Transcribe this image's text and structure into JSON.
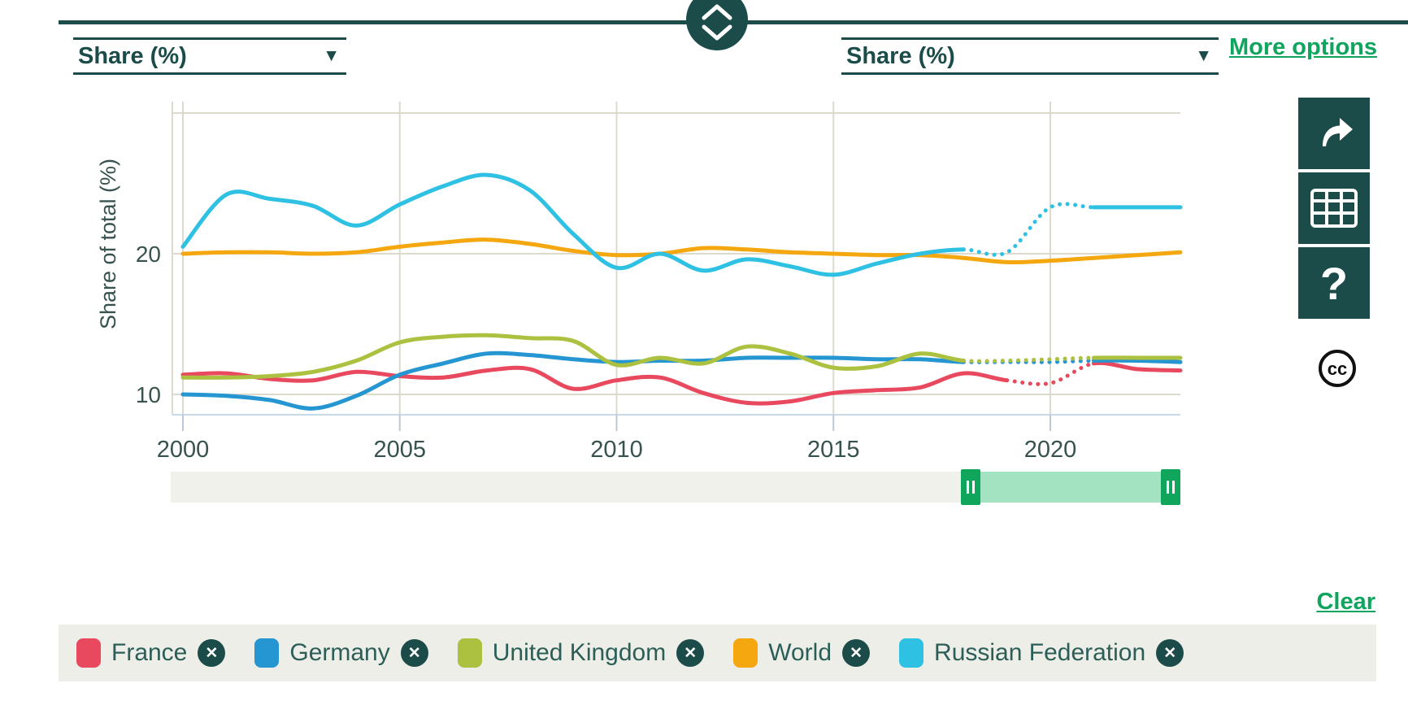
{
  "collapse_control": {
    "icon": "chevrons-up-down"
  },
  "left_axis_dropdown": {
    "value": "Share (%)",
    "caret_icon": "caret-down"
  },
  "right_axis_dropdown": {
    "value": "Share (%)",
    "caret_icon": "caret-down"
  },
  "more_options_label": "More options",
  "clear_label": "Clear",
  "toolbar": {
    "buttons": [
      {
        "name": "share",
        "icon": "share-arrow-icon"
      },
      {
        "name": "table",
        "icon": "data-table-icon"
      },
      {
        "name": "help",
        "icon": "question-mark-icon",
        "glyph": "?"
      }
    ],
    "license_icon": "creative-commons-icon",
    "license_text": "cc"
  },
  "colors": {
    "brand_teal": "#1c4c49",
    "link_green": "#10a55e",
    "slider_selection": "#a3e3c2",
    "slider_handle": "#0fa65c",
    "slider_track": "#f0f1eb",
    "legend_bg": "#edeee7",
    "gridline": "#ded9cd",
    "baseline": "#c7d8e9",
    "tick": "#b9c9d9",
    "axis_text": "#38534f"
  },
  "chart_data": {
    "type": "line",
    "title": "",
    "xlabel": "",
    "ylabel": "Share of total (%)",
    "x_range": [
      2000,
      2023
    ],
    "ylim": [
      8.5,
      30.8
    ],
    "x_ticks": [
      2000,
      2005,
      2010,
      2015,
      2020
    ],
    "y_ticks_labeled": [
      10,
      20
    ],
    "y_gridlines": [
      10,
      20,
      30
    ],
    "grid": true,
    "legend_position": "bottom-bar",
    "dotted_segment_meaning": "estimated values",
    "x": [
      2000,
      2001,
      2002,
      2003,
      2004,
      2005,
      2006,
      2007,
      2008,
      2009,
      2010,
      2011,
      2012,
      2013,
      2014,
      2015,
      2016,
      2017,
      2018,
      2019,
      2020,
      2021,
      2022,
      2023
    ],
    "series": [
      {
        "name": "France",
        "color": "#e8495f",
        "dotted_range": [
          2019,
          2021
        ],
        "values": [
          11.4,
          11.5,
          11.1,
          11.0,
          11.6,
          11.3,
          11.2,
          11.7,
          11.8,
          10.4,
          11.0,
          11.2,
          10.1,
          9.4,
          9.5,
          10.1,
          10.3,
          10.5,
          11.5,
          11.0,
          10.8,
          12.2,
          11.8,
          11.7
        ]
      },
      {
        "name": "Germany",
        "color": "#2596d1",
        "dotted_range": [
          2018,
          2021
        ],
        "values": [
          10.0,
          9.9,
          9.6,
          9.0,
          9.9,
          11.4,
          12.2,
          12.9,
          12.8,
          12.5,
          12.3,
          12.4,
          12.4,
          12.6,
          12.6,
          12.6,
          12.5,
          12.5,
          12.3,
          12.3,
          12.3,
          12.4,
          12.4,
          12.3
        ]
      },
      {
        "name": "United Kingdom",
        "color": "#abc13f",
        "dotted_range": [
          2018,
          2021
        ],
        "values": [
          11.2,
          11.2,
          11.3,
          11.6,
          12.4,
          13.7,
          14.1,
          14.2,
          14.0,
          13.8,
          12.1,
          12.6,
          12.2,
          13.4,
          12.9,
          11.9,
          12.0,
          12.9,
          12.4,
          12.4,
          12.5,
          12.6,
          12.6,
          12.6
        ]
      },
      {
        "name": "World",
        "color": "#f4a70e",
        "dotted_range": null,
        "values": [
          20.0,
          20.1,
          20.1,
          20.0,
          20.1,
          20.5,
          20.8,
          21.0,
          20.7,
          20.2,
          19.9,
          20.0,
          20.4,
          20.3,
          20.1,
          20.0,
          19.9,
          19.9,
          19.7,
          19.4,
          19.5,
          19.7,
          19.9,
          20.1
        ]
      },
      {
        "name": "Russian Federation",
        "color": "#2ec1e3",
        "dotted_range": [
          2018,
          2021
        ],
        "values": [
          20.5,
          24.2,
          23.9,
          23.4,
          22.0,
          23.5,
          24.8,
          25.6,
          24.5,
          21.4,
          19.0,
          20.0,
          18.8,
          19.6,
          19.1,
          18.5,
          19.3,
          20.0,
          20.3,
          20.1,
          23.3,
          23.3,
          23.3,
          23.3
        ]
      }
    ]
  },
  "time_slider": {
    "range_start": 2000,
    "range_end": 2023,
    "selected_start": 2018,
    "selected_end": 2023,
    "handle_icon": "pause-bars"
  },
  "legend": {
    "items": [
      {
        "label": "France",
        "color": "#e8495f",
        "remove_icon": "close-x-icon"
      },
      {
        "label": "Germany",
        "color": "#2596d1",
        "remove_icon": "close-x-icon"
      },
      {
        "label": "United Kingdom",
        "color": "#abc13f",
        "remove_icon": "close-x-icon"
      },
      {
        "label": "World",
        "color": "#f4a70e",
        "remove_icon": "close-x-icon"
      },
      {
        "label": "Russian Federation",
        "color": "#2ec1e3",
        "remove_icon": "close-x-icon"
      }
    ]
  }
}
